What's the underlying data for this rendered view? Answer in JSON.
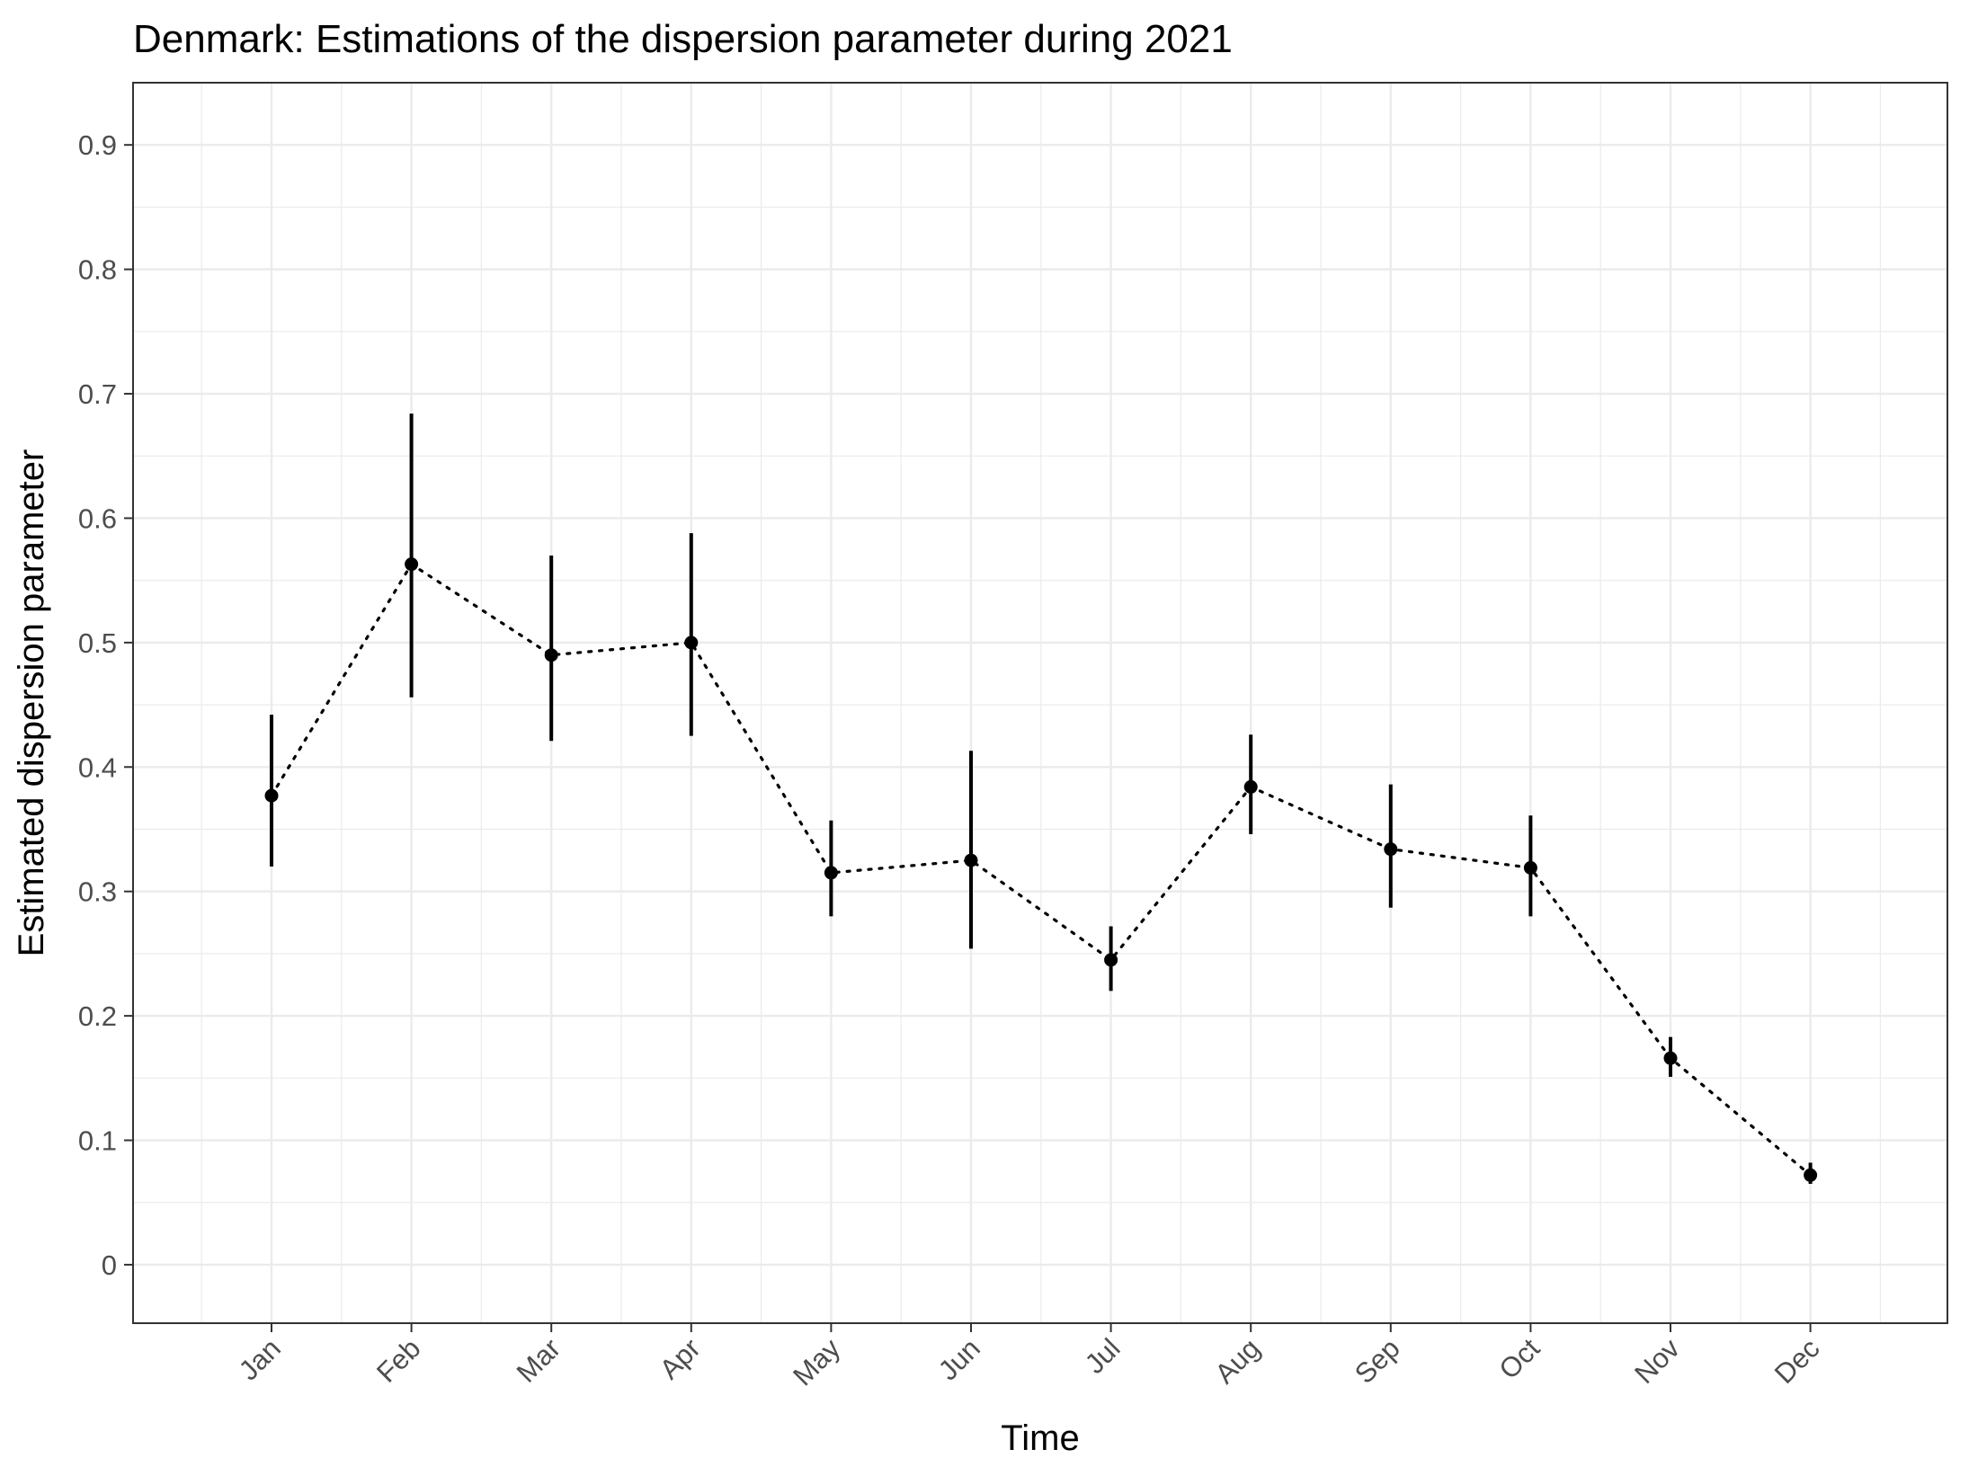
{
  "chart_data": {
    "type": "line",
    "title": "Denmark: Estimations of the dispersion parameter during 2021",
    "xlabel": "Time",
    "ylabel": "Estimated dispersion parameter",
    "categories": [
      "Jan",
      "Feb",
      "Mar",
      "Apr",
      "May",
      "Jun",
      "Jul",
      "Aug",
      "Sep",
      "Oct",
      "Nov",
      "Dec"
    ],
    "yticks": [
      "0",
      "0.1",
      "0.2",
      "0.3",
      "0.4",
      "0.5",
      "0.6",
      "0.7",
      "0.8",
      "0.9"
    ],
    "ylim": [
      -0.047,
      0.95
    ],
    "grid": true,
    "line_style": "dotted",
    "series": [
      {
        "values": [
          0.377,
          0.563,
          0.49,
          0.5,
          0.315,
          0.325,
          0.245,
          0.384,
          0.334,
          0.319,
          0.166,
          0.072
        ],
        "lower": [
          0.32,
          0.456,
          0.421,
          0.425,
          0.28,
          0.254,
          0.22,
          0.346,
          0.287,
          0.28,
          0.151,
          0.065
        ],
        "upper": [
          0.442,
          0.684,
          0.57,
          0.588,
          0.357,
          0.413,
          0.272,
          0.426,
          0.386,
          0.361,
          0.183,
          0.082
        ]
      }
    ],
    "colors": {
      "marker": "#000000",
      "grid": "#ebebeb",
      "panel_border": "#333333",
      "tick_label": "#4d4d4d"
    }
  }
}
